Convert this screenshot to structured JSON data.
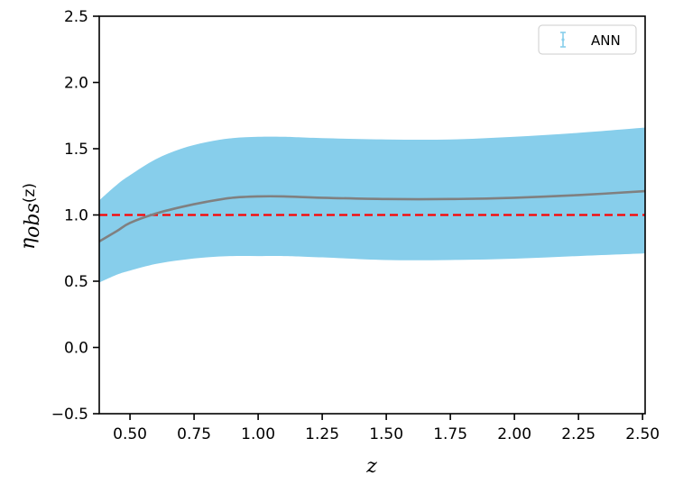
{
  "chart_data": {
    "type": "line",
    "title": "",
    "xlabel": "z",
    "ylabel": {
      "base": "η",
      "sub": "obs",
      "suffix": "(z)"
    },
    "xlim": [
      0.38,
      2.51
    ],
    "ylim": [
      -0.5,
      2.5
    ],
    "xticks": [
      0.5,
      0.75,
      1.0,
      1.25,
      1.5,
      1.75,
      2.0,
      2.25,
      2.5
    ],
    "xtick_labels": [
      "0.50",
      "0.75",
      "1.00",
      "1.25",
      "1.50",
      "1.75",
      "2.00",
      "2.25",
      "2.50"
    ],
    "yticks": [
      -0.5,
      0.0,
      0.5,
      1.0,
      1.5,
      2.0,
      2.5
    ],
    "ytick_labels": [
      "−0.5",
      "0.0",
      "0.5",
      "1.0",
      "1.5",
      "2.0",
      "2.5"
    ],
    "grid": false,
    "legend": {
      "position": "top-right",
      "entries": [
        {
          "label": "ANN",
          "marker": "errorbar",
          "color": "#87ceeb"
        }
      ]
    },
    "reference_line": {
      "y": 1.0,
      "style": "dashed",
      "color": "#ff0000"
    },
    "series": [
      {
        "name": "ANN",
        "kind": "line-with-band",
        "line_color": "#808080",
        "band_color": "#87ceeb",
        "x": [
          0.38,
          0.45,
          0.5,
          0.6,
          0.7,
          0.8,
          0.9,
          1.0,
          1.1,
          1.25,
          1.5,
          1.75,
          2.0,
          2.25,
          2.51
        ],
        "y": [
          0.8,
          0.88,
          0.94,
          1.01,
          1.06,
          1.1,
          1.13,
          1.14,
          1.14,
          1.13,
          1.12,
          1.12,
          1.13,
          1.15,
          1.18
        ],
        "upper": [
          1.11,
          1.23,
          1.3,
          1.42,
          1.5,
          1.55,
          1.58,
          1.59,
          1.59,
          1.58,
          1.57,
          1.57,
          1.59,
          1.62,
          1.66
        ],
        "lower": [
          0.49,
          0.55,
          0.58,
          0.63,
          0.66,
          0.68,
          0.69,
          0.69,
          0.69,
          0.68,
          0.66,
          0.66,
          0.67,
          0.69,
          0.71
        ]
      }
    ]
  }
}
